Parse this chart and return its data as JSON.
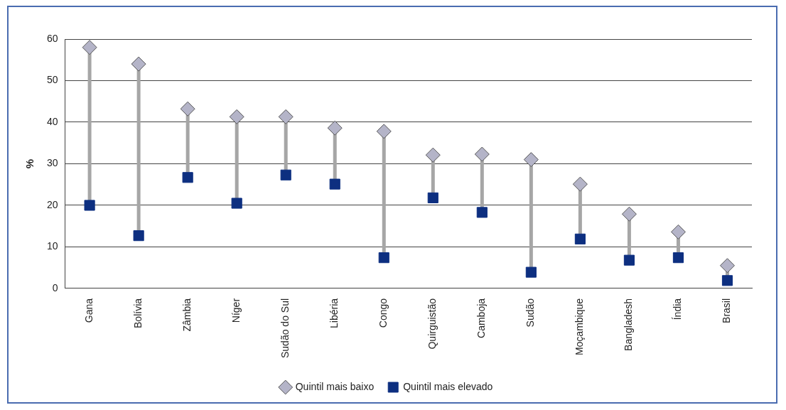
{
  "chart_data": {
    "type": "scatter",
    "ylabel": "%",
    "categories": [
      "Gana",
      "Bolívia",
      "Zâmbia",
      "Níger",
      "Sudão do Sul",
      "Libéria",
      "Congo",
      "Quirguistão",
      "Camboja",
      "Sudão",
      "Moçambique",
      "Bangladesh",
      "Índia",
      "Brasil"
    ],
    "series": [
      {
        "name": "Quintil mais baixo",
        "color": "#b4b4c8",
        "marker": "diamond",
        "values": [
          58,
          54,
          43.2,
          41.3,
          41.3,
          38.6,
          37.8,
          32.1,
          32.3,
          31,
          25.1,
          17.9,
          13.6,
          5.5
        ]
      },
      {
        "name": "Quintil mais elevado",
        "color": "#0d2f80",
        "marker": "square",
        "values": [
          20,
          12.7,
          26.7,
          20.5,
          27.3,
          25.1,
          7.4,
          21.8,
          18.3,
          3.9,
          11.9,
          6.8,
          7.4,
          1.9
        ]
      }
    ],
    "ylim": [
      0,
      60
    ],
    "yticks": [
      0,
      10,
      20,
      30,
      40,
      50,
      60
    ],
    "grid": "y",
    "legend": "bottom"
  }
}
